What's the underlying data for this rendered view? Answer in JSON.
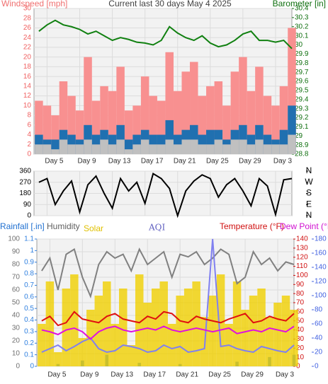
{
  "chart_data": [
    {
      "type": "combo",
      "title": "Current last 30 days May 4 2025",
      "xlim": [
        -0.6,
        31
      ],
      "xticks": [
        {
          "value": 1,
          "label": "Day 5"
        },
        {
          "value": 5,
          "label": "Day 9"
        },
        {
          "value": 9,
          "label": "Day 13"
        },
        {
          "value": 13,
          "label": "Day 17"
        },
        {
          "value": 17,
          "label": "Day 21"
        },
        {
          "value": 21,
          "label": "Day 25"
        },
        {
          "value": 25,
          "label": "Day 29"
        },
        {
          "value": 29,
          "label": "Day 3"
        }
      ],
      "x": [
        0,
        1,
        2,
        3,
        4,
        5,
        6,
        7,
        8,
        9,
        10,
        11,
        12,
        13,
        14,
        15,
        16,
        17,
        18,
        19,
        20,
        21,
        22,
        23,
        24,
        25,
        26,
        27,
        28,
        29,
        30,
        31
      ],
      "ylim": [
        0,
        30
      ],
      "yticks": [
        0,
        2,
        4,
        6,
        8,
        10,
        12,
        14,
        16,
        18,
        20,
        22,
        24,
        26,
        28,
        30
      ],
      "ycolor": "#f06060",
      "y2lim": [
        28.8,
        30.4
      ],
      "y2ticks": [
        28.8,
        28.9,
        {
          "value": 29,
          "label": "29"
        },
        29.1,
        29.2,
        29.3,
        29.4,
        29.5,
        29.6,
        29.7,
        29.8,
        29.9,
        {
          "value": 30,
          "label": "30"
        },
        30.1,
        30.2,
        30.3,
        30.4
      ],
      "y2color": "#107010",
      "grid": true,
      "series": [
        {
          "name": "Windspeed [mph]",
          "kind": "bar",
          "axis": "y",
          "color": "#f89090",
          "values": [
            11,
            10,
            8,
            15,
            12,
            9,
            20,
            11,
            14,
            13,
            18,
            9,
            10,
            16,
            12,
            11,
            21,
            13,
            17,
            19,
            12,
            14,
            15,
            10,
            17,
            20,
            13,
            18,
            12,
            10,
            14,
            26
          ]
        },
        {
          "kind": "bar",
          "axis": "y",
          "color": "#2070b0",
          "values": [
            4,
            3,
            3,
            5,
            4,
            3,
            6,
            4,
            5,
            4,
            6,
            3,
            4,
            5,
            4,
            4,
            7,
            4,
            5,
            6,
            4,
            5,
            5,
            3,
            5,
            6,
            4,
            6,
            4,
            3,
            5,
            10
          ]
        },
        {
          "kind": "bar",
          "axis": "y",
          "color": "#c0c0c0",
          "values": [
            2,
            2,
            1,
            3,
            2,
            2,
            3,
            2,
            3,
            2,
            3,
            1,
            2,
            3,
            2,
            2,
            3,
            2,
            3,
            3,
            2,
            2,
            3,
            2,
            3,
            3,
            2,
            3,
            2,
            2,
            2,
            4
          ]
        },
        {
          "name": "Barometer [in]",
          "kind": "line",
          "axis": "y2",
          "color": "#108010",
          "values": [
            30.15,
            30.22,
            30.27,
            30.22,
            30.2,
            30.17,
            30.12,
            30.15,
            30.1,
            30.05,
            30.08,
            30.06,
            30.03,
            30.02,
            30.0,
            30.05,
            30.2,
            30.13,
            30.08,
            30.05,
            30.1,
            30.02,
            29.98,
            30.0,
            30.05,
            30.12,
            30.15,
            30.05,
            30.05,
            30.03,
            30.05,
            29.96
          ]
        }
      ]
    },
    {
      "type": "combo",
      "xlim": [
        -0.6,
        31
      ],
      "xticks": [
        1,
        5,
        9,
        13,
        17,
        21,
        25,
        29
      ],
      "x": [
        0,
        1,
        2,
        3,
        4,
        5,
        6,
        7,
        8,
        9,
        10,
        11,
        12,
        13,
        14,
        15,
        16,
        17,
        18,
        19,
        20,
        21,
        22,
        23,
        24,
        25,
        26,
        27,
        28,
        29,
        30,
        31
      ],
      "ylim": [
        0,
        360
      ],
      "yticks": [
        0,
        90,
        180,
        270,
        360
      ],
      "ycolor": "#000000",
      "y2lim": [
        0,
        360
      ],
      "y2ticks": [
        {
          "value": 360,
          "label": "N"
        },
        {
          "value": 270,
          "label": "W"
        },
        {
          "value": 180,
          "label": "S"
        },
        {
          "value": 90,
          "label": "E"
        },
        {
          "value": 0,
          "label": "N"
        }
      ],
      "y2color": "#000000",
      "grid": true,
      "series": [
        {
          "kind": "line",
          "axis": "y",
          "color": "#000000",
          "values": [
            270,
            300,
            90,
            200,
            280,
            30,
            250,
            320,
            180,
            60,
            300,
            200,
            270,
            100,
            340,
            300,
            220,
            0,
            200,
            280,
            330,
            300,
            150,
            250,
            300,
            200,
            80,
            300,
            240,
            10,
            290,
            300
          ]
        }
      ]
    },
    {
      "type": "combo",
      "xlim": [
        -0.6,
        31
      ],
      "xticks": [
        {
          "value": 1,
          "label": "Day 5"
        },
        {
          "value": 5,
          "label": "Day 9"
        },
        {
          "value": 9,
          "label": "Day 13"
        },
        {
          "value": 13,
          "label": "Day 17"
        },
        {
          "value": 17,
          "label": "Day 21"
        },
        {
          "value": 21,
          "label": "Day 25"
        },
        {
          "value": 25,
          "label": "Day 29"
        },
        {
          "value": 29,
          "label": "Day 3"
        }
      ],
      "x": [
        0,
        1,
        2,
        3,
        4,
        5,
        6,
        7,
        8,
        9,
        10,
        11,
        12,
        13,
        14,
        15,
        16,
        17,
        18,
        19,
        20,
        21,
        22,
        23,
        24,
        25,
        26,
        27,
        28,
        29,
        30,
        31
      ],
      "ylim": [
        0,
        100
      ],
      "yticks": [
        0,
        10,
        20,
        30,
        40,
        50,
        60,
        70,
        80,
        90,
        100
      ],
      "ycolor": "#707070",
      "y4lim": [
        0,
        1.1
      ],
      "y4ticks": [
        0,
        0.1,
        0.2,
        0.3,
        0.4,
        0.5,
        0.6,
        0.7,
        0.8,
        0.9,
        1,
        1.1
      ],
      "y4color": "#3080e0",
      "y2lim": [
        0,
        140
      ],
      "y2ticks": [
        0,
        10,
        20,
        30,
        40,
        50,
        60,
        70,
        80,
        90,
        100,
        110,
        120,
        130,
        140
      ],
      "y2color": "#d01010",
      "y3lim": [
        0,
        180
      ],
      "y3ticks": [
        0,
        20,
        40,
        60,
        80,
        100,
        120,
        140,
        160,
        180
      ],
      "y3color": "#4060e0",
      "grid": true,
      "series": [
        {
          "name": "Rainfall [.in]",
          "kind": "bar",
          "axis": "y4",
          "color": "#3080e0",
          "values": [
            0,
            0,
            0.02,
            0,
            0,
            0.05,
            0,
            0,
            0.1,
            0,
            0,
            0,
            0.03,
            0,
            0,
            0,
            0,
            0.02,
            0,
            0,
            0,
            0,
            0,
            0,
            0.04,
            0,
            0,
            0,
            0.08,
            0,
            0,
            0.1
          ]
        },
        {
          "name": "Solar",
          "kind": "bar",
          "axis": "y3",
          "color": "#f0d000",
          "values": [
            60,
            120,
            20,
            110,
            130,
            40,
            80,
            100,
            120,
            60,
            110,
            30,
            130,
            90,
            110,
            120,
            60,
            100,
            110,
            120,
            70,
            100,
            130,
            60,
            120,
            80,
            100,
            110,
            70,
            90,
            100,
            80
          ]
        },
        {
          "name": "Humidity",
          "kind": "line",
          "axis": "y",
          "color": "#808080",
          "values": [
            75,
            85,
            60,
            88,
            92,
            70,
            55,
            80,
            90,
            85,
            88,
            75,
            92,
            80,
            85,
            90,
            70,
            88,
            86,
            90,
            80,
            85,
            92,
            88,
            65,
            70,
            90,
            80,
            85,
            75,
            82,
            80
          ]
        },
        {
          "name": "AQI",
          "kind": "line",
          "axis": "y3",
          "color": "#8080f0",
          "values": [
            20,
            25,
            30,
            22,
            28,
            35,
            40,
            25,
            20,
            22,
            30,
            28,
            25,
            20,
            22,
            30,
            25,
            28,
            20,
            22,
            25,
            180,
            28,
            30,
            25,
            22,
            20,
            28,
            25,
            22,
            20,
            30
          ]
        },
        {
          "name": "Temperature (°F)",
          "kind": "line",
          "axis": "y2",
          "color": "#e01010",
          "values": [
            50,
            55,
            45,
            48,
            60,
            52,
            50,
            48,
            55,
            58,
            52,
            50,
            48,
            55,
            52,
            60,
            58,
            50,
            48,
            55,
            52,
            50,
            48,
            52,
            55,
            58,
            48,
            50,
            55,
            52,
            50,
            58
          ]
        },
        {
          "name": "Dew Point (°F)",
          "kind": "line",
          "axis": "y2",
          "color": "#e010e0",
          "values": [
            40,
            38,
            35,
            40,
            42,
            38,
            30,
            38,
            42,
            44,
            40,
            38,
            40,
            42,
            40,
            44,
            40,
            38,
            40,
            42,
            40,
            38,
            40,
            42,
            36,
            38,
            40,
            38,
            42,
            40,
            38,
            44
          ]
        }
      ]
    }
  ]
}
